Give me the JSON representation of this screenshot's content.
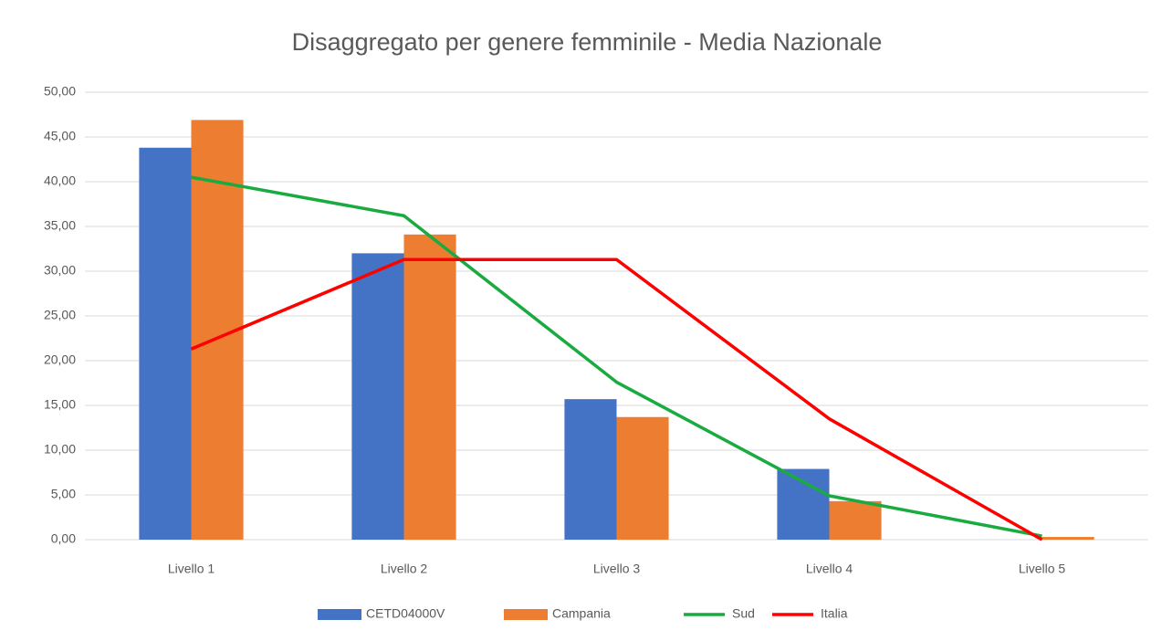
{
  "chart_data": {
    "type": "bar",
    "title": "Disaggregato per genere femminile - Media Nazionale",
    "categories": [
      "Livello 1",
      "Livello 2",
      "Livello 3",
      "Livello 4",
      "Livello 5"
    ],
    "series": [
      {
        "name": "CETD04000V",
        "type": "bar",
        "color": "#4472c4",
        "values": [
          43.8,
          32.0,
          15.7,
          7.9,
          0
        ]
      },
      {
        "name": "Campania",
        "type": "bar",
        "color": "#ed7d31",
        "values": [
          46.9,
          34.1,
          13.7,
          4.3,
          0.3
        ]
      },
      {
        "name": "Sud",
        "type": "line",
        "color": "#1aab40",
        "values": [
          40.5,
          36.2,
          17.6,
          4.9,
          0.4
        ]
      },
      {
        "name": "Italia",
        "type": "line",
        "color": "#ff0000",
        "values": [
          21.3,
          31.3,
          31.3,
          13.5,
          0
        ]
      }
    ],
    "ylim": [
      0,
      50
    ],
    "yticks": [
      {
        "value": 0,
        "label": "0,00"
      },
      {
        "value": 5,
        "label": "5,00"
      },
      {
        "value": 10,
        "label": "10,00"
      },
      {
        "value": 15,
        "label": "15,00"
      },
      {
        "value": 20,
        "label": "20,00"
      },
      {
        "value": 25,
        "label": "25,00"
      },
      {
        "value": 30,
        "label": "30,00"
      },
      {
        "value": 35,
        "label": "35,00"
      },
      {
        "value": 40,
        "label": "40,00"
      },
      {
        "value": 45,
        "label": "45,00"
      },
      {
        "value": 50,
        "label": "50,00"
      }
    ],
    "grid": true,
    "legend": "bottom"
  }
}
